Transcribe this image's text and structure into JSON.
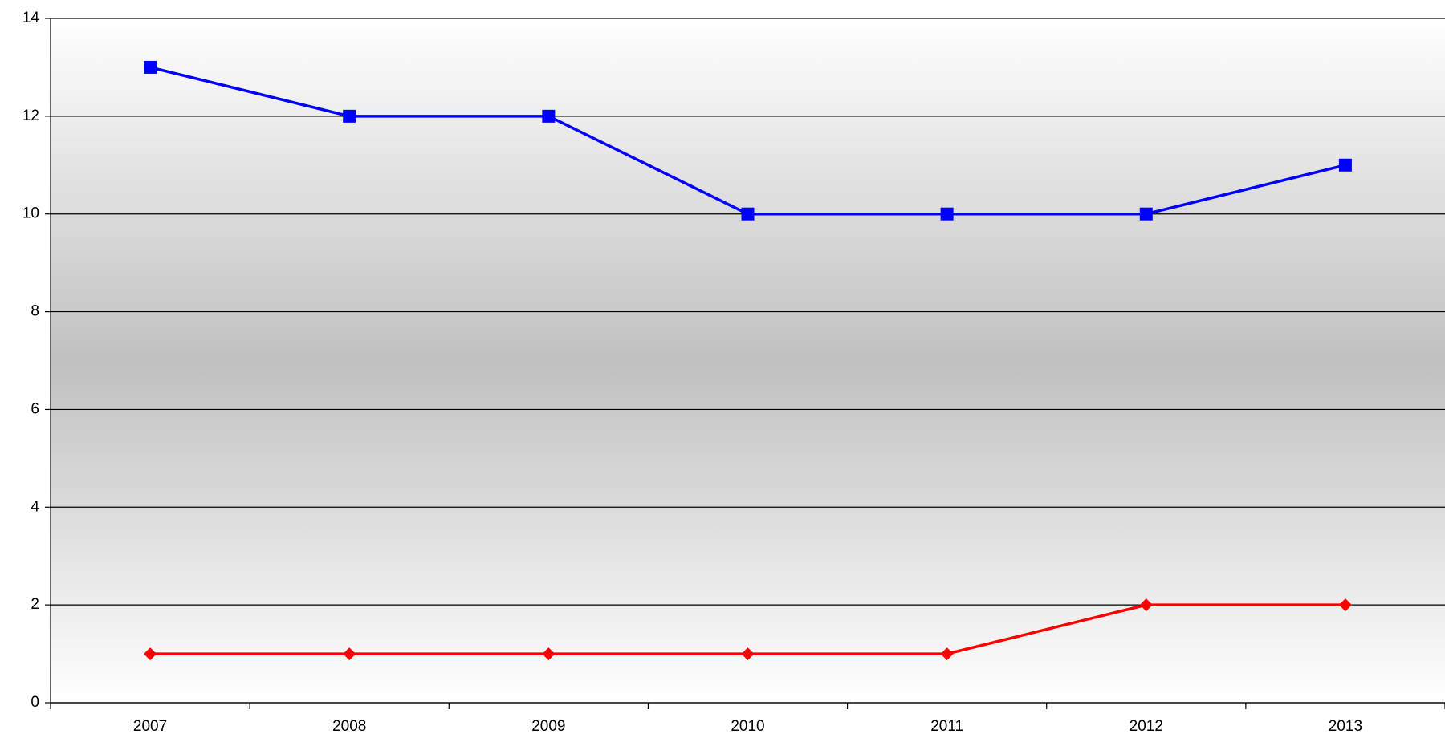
{
  "chart_data": {
    "type": "line",
    "categories": [
      "2007",
      "2008",
      "2009",
      "2010",
      "2011",
      "2012",
      "2013"
    ],
    "series": [
      {
        "color": "#0000ff",
        "marker": "square",
        "values": [
          13,
          12,
          12,
          10,
          10,
          10,
          11
        ]
      },
      {
        "color": "#ff0000",
        "marker": "diamond",
        "values": [
          1,
          1,
          1,
          1,
          1,
          2,
          2
        ]
      }
    ],
    "ylim": [
      0,
      14
    ],
    "yticks": [
      0,
      2,
      4,
      6,
      8,
      10,
      12,
      14
    ],
    "grid": true
  }
}
